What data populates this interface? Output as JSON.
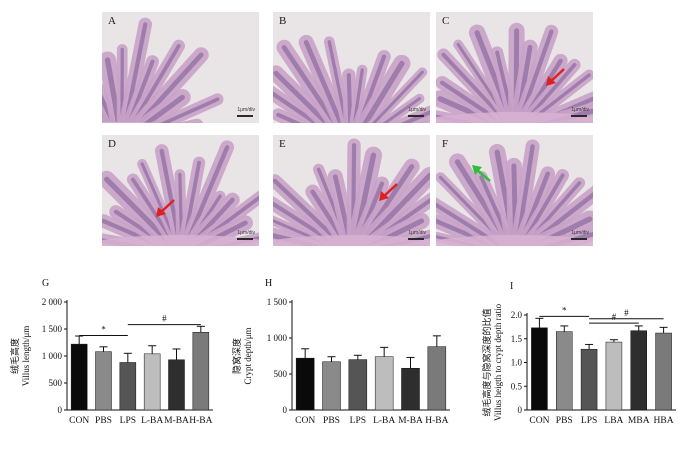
{
  "panels": [
    {
      "label": "A",
      "scale": "1μm/div",
      "arrow": null
    },
    {
      "label": "B",
      "scale": "1μm/div",
      "arrow": null
    },
    {
      "label": "C",
      "scale": "1μm/div",
      "arrow": "red"
    },
    {
      "label": "D",
      "scale": "1μm/div",
      "arrow": "red"
    },
    {
      "label": "E",
      "scale": "1μm/div",
      "arrow": "red"
    },
    {
      "label": "F",
      "scale": "1μm/div",
      "arrow": "green"
    }
  ],
  "colors": {
    "arrow_red": "#e02020",
    "arrow_green": "#2fbf3a",
    "tissue": "#c9a3c8",
    "tissue_dark": "#7a5a94",
    "bg": "#e9e4e6"
  },
  "chart_data": [
    {
      "type": "bar",
      "panel_label": "G",
      "ylabel_cn": "绒毛高度",
      "ylabel_en": "Villus length/μm",
      "categories": [
        "CON",
        "PBS",
        "LPS",
        "L-BA",
        "M-BA",
        "H-BA"
      ],
      "values": [
        1220,
        1080,
        880,
        1040,
        930,
        1440
      ],
      "errors": [
        150,
        90,
        170,
        150,
        200,
        110
      ],
      "bar_colors": [
        "#0a0a0a",
        "#8a8a8a",
        "#555555",
        "#bdbdbd",
        "#2e2e2e",
        "#7a7a7a"
      ],
      "ylim": [
        0,
        2000
      ],
      "yticks": [
        "0",
        "500",
        "1 000",
        "1 500",
        "2 000"
      ],
      "annotations": [
        {
          "symbol": "*",
          "from": "CON",
          "to": "LPS"
        },
        {
          "symbol": "#",
          "from": "LPS",
          "to": "H-BA"
        }
      ]
    },
    {
      "type": "bar",
      "panel_label": "H",
      "ylabel_cn": "隐窝深度",
      "ylabel_en": "Crypt depth/μm",
      "categories": [
        "CON",
        "PBS",
        "LPS",
        "L-BA",
        "M-BA",
        "H-BA"
      ],
      "values": [
        720,
        670,
        700,
        740,
        580,
        880
      ],
      "errors": [
        130,
        70,
        60,
        130,
        150,
        150
      ],
      "bar_colors": [
        "#0a0a0a",
        "#8a8a8a",
        "#555555",
        "#bdbdbd",
        "#2e2e2e",
        "#7a7a7a"
      ],
      "ylim": [
        0,
        1500
      ],
      "yticks": [
        "0",
        "500",
        "1 000",
        "1 500"
      ],
      "annotations": []
    },
    {
      "type": "bar",
      "panel_label": "I",
      "ylabel_cn": "绒毛高度与隐窝深度的比值",
      "ylabel_en": "Villus heigth to crypt depth ratio",
      "categories": [
        "CON",
        "PBS",
        "LPS",
        "LBA",
        "MBA",
        "HBA"
      ],
      "values": [
        1.73,
        1.65,
        1.28,
        1.43,
        1.67,
        1.62
      ],
      "errors": [
        0.2,
        0.12,
        0.1,
        0.05,
        0.1,
        0.12
      ],
      "bar_colors": [
        "#0a0a0a",
        "#8a8a8a",
        "#555555",
        "#bdbdbd",
        "#2e2e2e",
        "#7a7a7a"
      ],
      "ylim": [
        0,
        2.0
      ],
      "yticks": [
        "0",
        "0.5",
        "1.0",
        "1.5",
        "2.0"
      ],
      "annotations": [
        {
          "symbol": "*",
          "from": "CON",
          "to": "LPS"
        },
        {
          "symbol": "#",
          "from": "LPS",
          "to": "MBA"
        },
        {
          "symbol": "#",
          "from": "LPS",
          "to": "HBA"
        }
      ]
    }
  ]
}
